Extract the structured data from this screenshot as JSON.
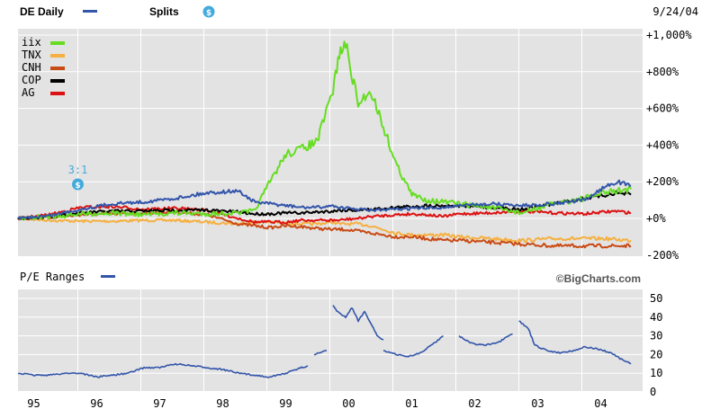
{
  "header": {
    "title": "DE Daily",
    "splits_label": "Splits",
    "date": "9/24/04"
  },
  "colors": {
    "panel_bg": "#e3e3e3",
    "grid": "#ffffff",
    "de": "#3355aa",
    "iix": "#66dd22",
    "tnx": "#f5b041",
    "cnh": "#c84a14",
    "cop": "#000000",
    "ag": "#dd1111",
    "split_marker": "#44aadd"
  },
  "watermark": "©BigCharts.com",
  "chart_data": [
    {
      "type": "line",
      "title": "DE Daily",
      "x_ticks": [
        "95",
        "96",
        "97",
        "98",
        "99",
        "00",
        "01",
        "02",
        "03",
        "04"
      ],
      "y_ticks": [
        "+1,000%",
        "+800%",
        "+600%",
        "+400%",
        "+200%",
        "+0%",
        "-200%"
      ],
      "ylim": [
        -200,
        1000
      ],
      "grid": true,
      "legend": "top-left",
      "annotations": [
        {
          "label": "3:1",
          "x": 1995.95,
          "kind": "split"
        }
      ],
      "x": [
        1995.0,
        1995.5,
        1996.0,
        1996.5,
        1997.0,
        1997.5,
        1998.0,
        1998.5,
        1998.75,
        1999.0,
        1999.25,
        1999.5,
        1999.75,
        2000.0,
        2000.1,
        2000.2,
        2000.4,
        2000.6,
        2000.8,
        2001.0,
        2001.25,
        2001.5,
        2001.75,
        2002.0,
        2002.5,
        2003.0,
        2003.5,
        2004.0,
        2004.3,
        2004.5,
        2004.73
      ],
      "series": [
        {
          "name": "DE",
          "values": [
            0,
            15,
            50,
            80,
            90,
            110,
            140,
            150,
            90,
            80,
            70,
            60,
            60,
            70,
            60,
            55,
            50,
            45,
            45,
            50,
            55,
            55,
            60,
            70,
            80,
            70,
            80,
            100,
            170,
            200,
            180
          ]
        },
        {
          "name": "iix",
          "values": [
            0,
            10,
            25,
            30,
            20,
            30,
            25,
            30,
            40,
            200,
            350,
            380,
            420,
            700,
            900,
            950,
            620,
            700,
            500,
            300,
            130,
            100,
            90,
            80,
            60,
            30,
            80,
            110,
            140,
            150,
            160
          ]
        },
        {
          "name": "TNX",
          "values": [
            0,
            -10,
            -15,
            -15,
            -10,
            -10,
            -20,
            -30,
            -20,
            -20,
            -25,
            -30,
            -30,
            -20,
            -30,
            -30,
            -30,
            -40,
            -60,
            -80,
            -90,
            -90,
            -90,
            -100,
            -110,
            -120,
            -110,
            -110,
            -110,
            -115,
            -120
          ]
        },
        {
          "name": "CNH",
          "values": [
            0,
            5,
            20,
            25,
            30,
            35,
            20,
            -30,
            -40,
            -50,
            -40,
            -45,
            -55,
            -60,
            -60,
            -60,
            -70,
            -80,
            -90,
            -100,
            -100,
            -110,
            -120,
            -120,
            -130,
            -140,
            -150,
            -150,
            -150,
            -150,
            -150
          ]
        },
        {
          "name": "COP",
          "values": [
            0,
            10,
            30,
            40,
            40,
            45,
            45,
            35,
            25,
            25,
            30,
            30,
            35,
            40,
            45,
            45,
            45,
            50,
            55,
            60,
            65,
            70,
            70,
            70,
            60,
            50,
            80,
            110,
            125,
            140,
            130
          ]
        },
        {
          "name": "AG",
          "values": [
            0,
            20,
            60,
            65,
            50,
            55,
            45,
            0,
            -20,
            -20,
            -20,
            -10,
            -10,
            -10,
            -10,
            -5,
            0,
            10,
            15,
            20,
            25,
            20,
            10,
            25,
            30,
            40,
            30,
            25,
            35,
            40,
            30
          ]
        }
      ]
    },
    {
      "type": "line",
      "title": "P/E Ranges",
      "x_ticks": [
        "95",
        "96",
        "97",
        "98",
        "99",
        "00",
        "01",
        "02",
        "03",
        "04"
      ],
      "y_ticks": [
        "50",
        "40",
        "30",
        "20",
        "10",
        "0"
      ],
      "ylim": [
        0,
        50
      ],
      "grid": true,
      "series": [
        {
          "name": "P/E Ranges",
          "segments": [
            {
              "x": [
                1995.0,
                1995.25,
                1995.5,
                1995.75,
                1996.0,
                1996.25,
                1996.5,
                1996.75,
                1997.0,
                1997.25,
                1997.5,
                1997.75,
                1998.0,
                1998.25,
                1998.5,
                1998.75,
                1999.0,
                1999.25,
                1999.5,
                1999.6
              ],
              "values": [
                10,
                9,
                9,
                10,
                10,
                8,
                9,
                10,
                13,
                13,
                15,
                14,
                13,
                12,
                10,
                9,
                8,
                10,
                13,
                14
              ]
            },
            {
              "x": [
                1999.7,
                1999.8,
                1999.9
              ],
              "values": [
                20,
                21,
                22
              ]
            },
            {
              "x": [
                2000.0,
                2000.1,
                2000.2,
                2000.3,
                2000.4,
                2000.5,
                2000.6,
                2000.7,
                2000.8
              ],
              "values": [
                46,
                42,
                40,
                45,
                38,
                43,
                37,
                30,
                28
              ]
            },
            {
              "x": [
                2000.8,
                2001.0,
                2001.2,
                2001.4,
                2001.6,
                2001.75
              ],
              "values": [
                22,
                20,
                19,
                21,
                26,
                30
              ]
            },
            {
              "x": [
                2002.0,
                2002.2,
                2002.4,
                2002.6,
                2002.85
              ],
              "values": [
                30,
                26,
                25,
                26,
                31
              ]
            },
            {
              "x": [
                2002.95,
                2003.1,
                2003.2,
                2003.4,
                2003.6,
                2003.8,
                2004.0,
                2004.2,
                2004.4,
                2004.6,
                2004.73
              ],
              "values": [
                38,
                34,
                25,
                22,
                21,
                22,
                24,
                23,
                21,
                17,
                15
              ]
            }
          ]
        }
      ]
    }
  ]
}
